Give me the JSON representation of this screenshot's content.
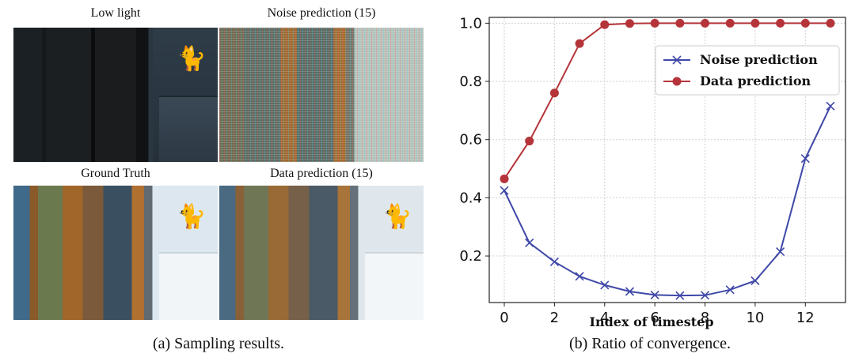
{
  "left_panel": {
    "titles": {
      "low": "Low light",
      "noise": "Noise prediction (15)",
      "gt": "Ground Truth",
      "dp": "Data prediction (15)"
    },
    "caption": "(a) Sampling results."
  },
  "right_panel": {
    "caption": "(b) Ratio of convergence."
  },
  "colors": {
    "noise": "#3f48a8",
    "data": "#b5343a"
  },
  "chart_data": {
    "type": "line",
    "xlabel": "Index of timestep",
    "ylabel": "",
    "xlim": [
      -0.6,
      13.6
    ],
    "ylim": [
      0.04,
      1.02
    ],
    "xticks": [
      0,
      2,
      4,
      6,
      8,
      10,
      12
    ],
    "yticks": [
      0.2,
      0.4,
      0.6,
      0.8,
      1.0
    ],
    "grid": true,
    "legend_position": "top-right",
    "x": [
      0,
      1,
      2,
      3,
      4,
      5,
      6,
      7,
      8,
      9,
      10,
      11,
      12,
      13
    ],
    "series": [
      {
        "name": "Noise prediction",
        "marker": "x",
        "color": "#3f48a8",
        "values": [
          0.425,
          0.245,
          0.18,
          0.13,
          0.1,
          0.078,
          0.066,
          0.064,
          0.065,
          0.084,
          0.115,
          0.215,
          0.535,
          0.715
        ]
      },
      {
        "name": "Data prediction",
        "marker": "o",
        "color": "#b5343a",
        "values": [
          0.465,
          0.595,
          0.76,
          0.93,
          0.995,
          0.999,
          1.0,
          1.0,
          1.0,
          1.0,
          1.0,
          1.0,
          1.0,
          1.0
        ]
      }
    ]
  }
}
